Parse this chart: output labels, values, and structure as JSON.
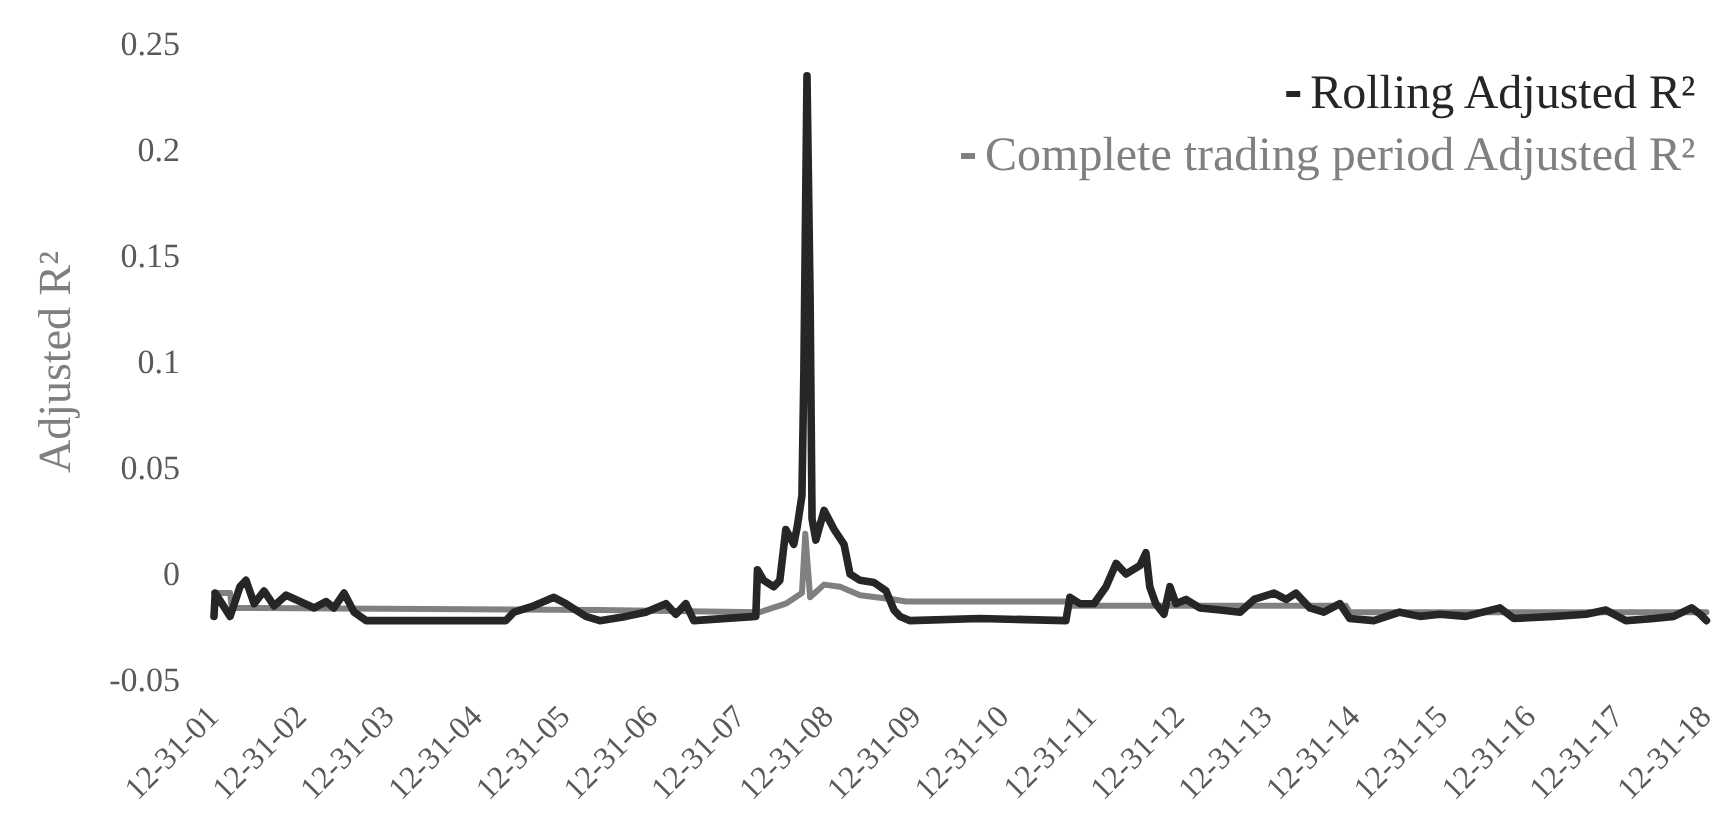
{
  "chart_data": {
    "type": "line",
    "ylabel": "Adjusted R²",
    "xlim": [
      "2001-12-31",
      "2018-12-31"
    ],
    "xticks": [
      {
        "value": "2001-12-31",
        "label": "12-31-01"
      },
      {
        "value": "2002-12-31",
        "label": "12-31-02"
      },
      {
        "value": "2003-12-31",
        "label": "12-31-03"
      },
      {
        "value": "2004-12-31",
        "label": "12-31-04"
      },
      {
        "value": "2005-12-31",
        "label": "12-31-05"
      },
      {
        "value": "2006-12-31",
        "label": "12-31-06"
      },
      {
        "value": "2007-12-31",
        "label": "12-31-07"
      },
      {
        "value": "2008-12-31",
        "label": "12-31-08"
      },
      {
        "value": "2009-12-31",
        "label": "12-31-09"
      },
      {
        "value": "2010-12-31",
        "label": "12-31-10"
      },
      {
        "value": "2011-12-31",
        "label": "12-31-11"
      },
      {
        "value": "2012-12-31",
        "label": "12-31-12"
      },
      {
        "value": "2013-12-31",
        "label": "12-31-13"
      },
      {
        "value": "2014-12-31",
        "label": "12-31-14"
      },
      {
        "value": "2015-12-31",
        "label": "12-31-15"
      },
      {
        "value": "2016-12-31",
        "label": "12-31-16"
      },
      {
        "value": "2017-12-31",
        "label": "12-31-17"
      },
      {
        "value": "2018-12-31",
        "label": "12-31-18"
      }
    ],
    "ylim": [
      -0.05,
      0.25
    ],
    "yticks": [
      -0.05,
      0,
      0.05,
      0.1,
      0.15,
      0.2,
      0.25
    ],
    "grid": false,
    "legend": "top right",
    "marker": "none",
    "series": [
      {
        "name": "Rolling Adjusted R²",
        "color": "#262626",
        "x": [
          "2001-12-31",
          "2002-01-05",
          "2002-03-08",
          "2002-04-18",
          "2002-05-13",
          "2002-06-16",
          "2002-07-27",
          "2002-09-07",
          "2002-10-27",
          "2002-12-24",
          "2003-02-21",
          "2003-04-11",
          "2003-05-14",
          "2003-06-25",
          "2003-08-06",
          "2003-09-25",
          "2005-04-28",
          "2005-06-01",
          "2005-08-23",
          "2005-11-14",
          "2006-01-03",
          "2006-03-27",
          "2006-05-24",
          "2006-09-10",
          "2006-12-01",
          "2007-02-23",
          "2007-04-05",
          "2007-05-17",
          "2007-06-19",
          "2008-03-03",
          "2008-03-10",
          "2008-04-05",
          "2008-05-17",
          "2008-06-11",
          "2008-07-06",
          "2008-08-08",
          "2008-08-22",
          "2008-09-11",
          "2008-09-19",
          "2008-10-02",
          "2008-10-15",
          "2008-10-23",
          "2008-11-08",
          "2008-12-12",
          "2009-01-23",
          "2009-03-05",
          "2009-03-30",
          "2009-05-11",
          "2009-07-08",
          "2009-08-27",
          "2009-09-29",
          "2009-10-24",
          "2009-12-05",
          "2010-09-21",
          "2011-09-14",
          "2011-10-01",
          "2011-11-11",
          "2012-01-09",
          "2012-02-28",
          "2012-04-10",
          "2012-05-21",
          "2012-07-18",
          "2012-08-12",
          "2012-08-28",
          "2012-09-22",
          "2012-10-26",
          "2012-11-20",
          "2012-12-15",
          "2013-01-26",
          "2013-03-25",
          "2013-06-17",
          "2013-09-08",
          "2013-11-05",
          "2014-01-27",
          "2014-03-18",
          "2014-04-28",
          "2014-06-25",
          "2014-08-22",
          "2014-10-28",
          "2014-12-08",
          "2015-03-18",
          "2015-07-04",
          "2015-09-26",
          "2015-12-18",
          "2016-04-04",
          "2016-08-24",
          "2016-10-21",
          "2017-04-06",
          "2017-08-17",
          "2017-11-08",
          "2018-01-30",
          "2018-05-26",
          "2018-08-17",
          "2018-10-30",
          "2018-12-05",
          "2018-12-31"
        ],
        "values": [
          -0.02,
          -0.009,
          -0.02,
          -0.006,
          -0.003,
          -0.014,
          -0.008,
          -0.015,
          -0.01,
          -0.013,
          -0.016,
          -0.013,
          -0.016,
          -0.009,
          -0.018,
          -0.022,
          -0.022,
          -0.018,
          -0.015,
          -0.011,
          -0.014,
          -0.02,
          -0.022,
          -0.02,
          -0.018,
          -0.014,
          -0.019,
          -0.014,
          -0.022,
          -0.02,
          0.002,
          -0.003,
          -0.006,
          -0.003,
          0.021,
          0.014,
          0.022,
          0.037,
          0.095,
          0.235,
          0.13,
          0.026,
          0.016,
          0.03,
          0.021,
          0.014,
          0,
          -0.003,
          -0.004,
          -0.008,
          -0.017,
          -0.02,
          -0.022,
          -0.021,
          -0.022,
          -0.011,
          -0.014,
          -0.014,
          -0.006,
          0.005,
          0,
          0.004,
          0.01,
          -0.006,
          -0.014,
          -0.019,
          -0.006,
          -0.014,
          -0.012,
          -0.016,
          -0.017,
          -0.018,
          -0.012,
          -0.009,
          -0.012,
          -0.009,
          -0.016,
          -0.018,
          -0.014,
          -0.021,
          -0.022,
          -0.018,
          -0.02,
          -0.019,
          -0.02,
          -0.016,
          -0.021,
          -0.02,
          -0.019,
          -0.017,
          -0.022,
          -0.021,
          -0.02,
          -0.016,
          -0.019,
          -0.022
        ]
      },
      {
        "name": "Complete trading period Adjusted R²",
        "color": "#808080",
        "x": [
          "2001-12-31",
          "2002-03-08",
          "2002-03-15",
          "2006-05-24",
          "2008-03-20",
          "2008-07-06",
          "2008-09-11",
          "2008-09-25",
          "2008-10-15",
          "2008-12-12",
          "2009-02-17",
          "2009-05-11",
          "2009-09-29",
          "2009-11-18",
          "2011-09-14",
          "2011-10-05",
          "2014-11-22",
          "2014-12-08",
          "2018-12-31"
        ],
        "values": [
          -0.009,
          -0.009,
          -0.016,
          -0.017,
          -0.018,
          -0.014,
          -0.009,
          0.019,
          -0.011,
          -0.005,
          -0.006,
          -0.01,
          -0.012,
          -0.013,
          -0.013,
          -0.015,
          -0.015,
          -0.018,
          -0.018
        ]
      }
    ]
  }
}
